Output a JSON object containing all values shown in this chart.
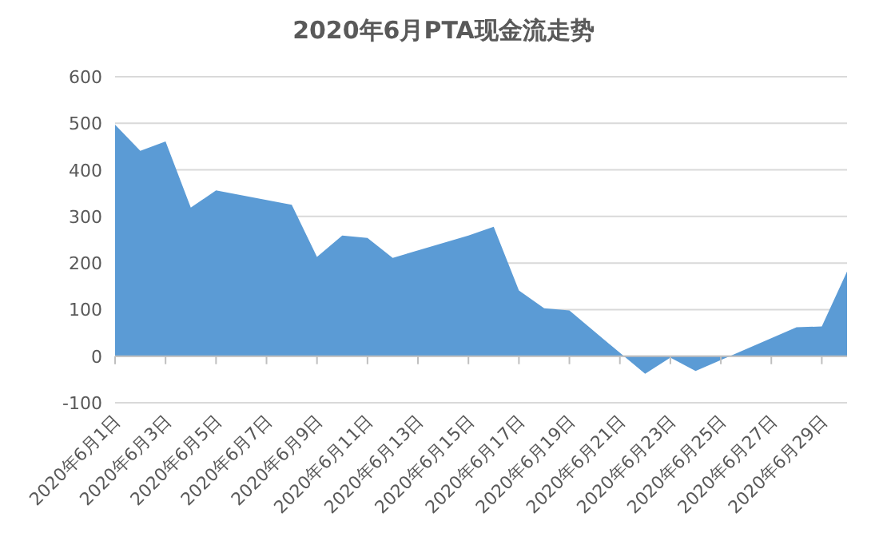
{
  "chart_data": {
    "type": "area",
    "title": "2020年6月PTA现金流走势",
    "x": [
      "2020-06-01",
      "2020-06-02",
      "2020-06-03",
      "2020-06-04",
      "2020-06-05",
      "2020-06-08",
      "2020-06-09",
      "2020-06-10",
      "2020-06-11",
      "2020-06-12",
      "2020-06-15",
      "2020-06-16",
      "2020-06-17",
      "2020-06-18",
      "2020-06-19",
      "2020-06-22",
      "2020-06-23",
      "2020-06-24",
      "2020-06-28",
      "2020-06-29",
      "2020-06-30"
    ],
    "values": [
      497,
      441,
      461,
      319,
      356,
      325,
      213,
      259,
      254,
      211,
      259,
      278,
      141,
      103,
      98,
      -38,
      -3,
      -32,
      62,
      64,
      182
    ],
    "color": "#5b9bd5",
    "xlim": [
      "2020-06-01",
      "2020-06-30"
    ],
    "xticks": [
      {
        "value": "2020-06-01",
        "label": "2020年6月1日"
      },
      {
        "value": "2020-06-03",
        "label": "2020年6月3日"
      },
      {
        "value": "2020-06-05",
        "label": "2020年6月5日"
      },
      {
        "value": "2020-06-07",
        "label": "2020年6月7日"
      },
      {
        "value": "2020-06-09",
        "label": "2020年6月9日"
      },
      {
        "value": "2020-06-11",
        "label": "2020年6月11日"
      },
      {
        "value": "2020-06-13",
        "label": "2020年6月13日"
      },
      {
        "value": "2020-06-15",
        "label": "2020年6月15日"
      },
      {
        "value": "2020-06-17",
        "label": "2020年6月17日"
      },
      {
        "value": "2020-06-19",
        "label": "2020年6月19日"
      },
      {
        "value": "2020-06-21",
        "label": "2020年6月21日"
      },
      {
        "value": "2020-06-23",
        "label": "2020年6月23日"
      },
      {
        "value": "2020-06-25",
        "label": "2020年6月25日"
      },
      {
        "value": "2020-06-27",
        "label": "2020年6月27日"
      },
      {
        "value": "2020-06-29",
        "label": "2020年6月29日"
      }
    ],
    "ylim": [
      -100,
      600
    ],
    "yticks": [
      -100,
      0,
      100,
      200,
      300,
      400,
      500,
      600
    ],
    "grid": "y"
  }
}
